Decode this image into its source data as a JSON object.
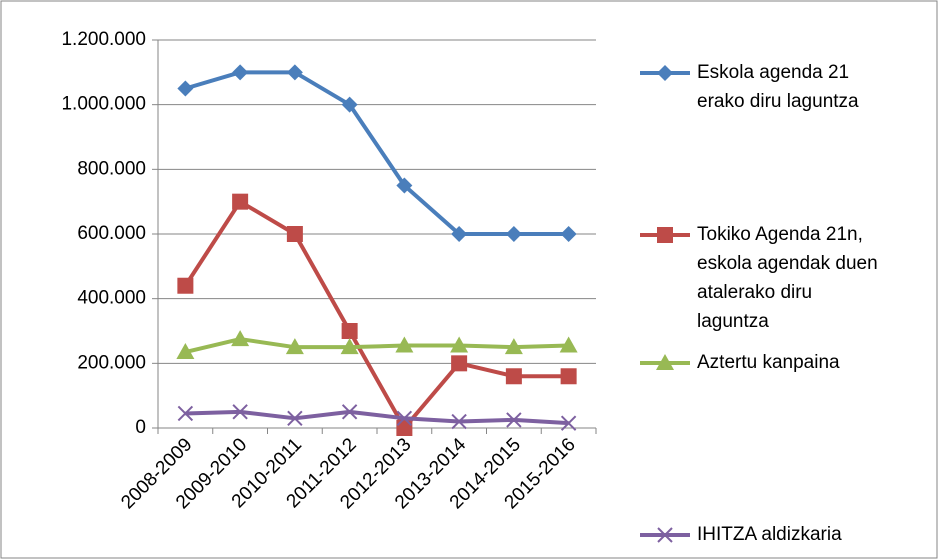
{
  "chart_data": {
    "type": "line",
    "categories": [
      "2008-2009",
      "2009-2010",
      "2010-2011",
      "2011-2012",
      "2012-2013",
      "2013-2014",
      "2014-2015",
      "2015-2016"
    ],
    "series": [
      {
        "name": "Eskola agenda 21\nerako diru laguntza",
        "color": "#4a7ebb",
        "marker": "diamond",
        "values": [
          1050000,
          1100000,
          1100000,
          1000000,
          750000,
          600000,
          600000,
          600000
        ]
      },
      {
        "name": "Tokiko Agenda 21n,\neskola agendak duen\natalerako diru\nlaguntza",
        "color": "#be4b48",
        "marker": "square",
        "values": [
          440000,
          700000,
          600000,
          300000,
          0,
          200000,
          160000,
          160000
        ]
      },
      {
        "name": "Aztertu kanpaina",
        "color": "#98b954",
        "marker": "triangle",
        "values": [
          235000,
          275000,
          250000,
          250000,
          255000,
          255000,
          250000,
          255000
        ]
      },
      {
        "name": "IHITZA aldizkaria",
        "color": "#7d60a0",
        "marker": "x",
        "values": [
          45000,
          50000,
          30000,
          50000,
          30000,
          20000,
          25000,
          15000
        ]
      }
    ],
    "ylim": [
      0,
      1200000
    ],
    "yticks": [
      0,
      {
        "value": 200000,
        "label": "200.000"
      },
      {
        "value": 400000,
        "label": "400.000"
      },
      {
        "value": 600000,
        "label": "600.000"
      },
      {
        "value": 800000,
        "label": "800.000"
      },
      {
        "value": 1000000,
        "label": "1.000.000"
      },
      {
        "value": 1200000,
        "label": "1.200.000"
      }
    ],
    "grid": true,
    "legend": "right"
  }
}
